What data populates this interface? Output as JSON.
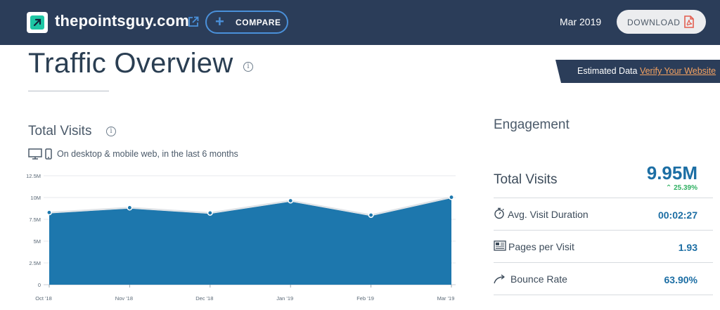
{
  "header": {
    "site_name": "thepointsguy.com",
    "compare_label": "COMPARE",
    "date": "Mar 2019",
    "download_label": "DOWNLOAD",
    "colors": {
      "bar": "#2b3d59",
      "accent": "#4a90d9",
      "logo": "#1ec6a4",
      "pdf": "#e35d4f"
    }
  },
  "page": {
    "title": "Traffic Overview",
    "info_glyph": "i"
  },
  "banner": {
    "text": "Estimated Data",
    "link": "Verify Your Website"
  },
  "total_visits_section": {
    "title": "Total Visits",
    "info_glyph": "i",
    "device_note": "On desktop & mobile web, in the last 6 months"
  },
  "chart_data": {
    "type": "area",
    "categories": [
      "Oct '18",
      "Nov '18",
      "Dec '18",
      "Jan '19",
      "Feb '19",
      "Mar '19"
    ],
    "values": [
      8.2,
      8.75,
      8.15,
      9.55,
      7.9,
      9.95
    ],
    "y_ticks": [
      "0",
      "2.5M",
      "5M",
      "7.5M",
      "10M",
      "12.5M"
    ],
    "ylim": [
      0,
      12.5
    ],
    "unit": "M",
    "grid": true,
    "color": "#1d77ad"
  },
  "engagement": {
    "title": "Engagement",
    "total_visits": {
      "label": "Total Visits",
      "value": "9.95M",
      "change": "25.39%"
    },
    "metrics": [
      {
        "label": "Avg. Visit Duration",
        "value": "00:02:27",
        "icon": "stopwatch-icon"
      },
      {
        "label": "Pages per Visit",
        "value": "1.93",
        "icon": "pages-icon"
      },
      {
        "label": "Bounce Rate",
        "value": "63.90%",
        "icon": "bounce-arrow-icon"
      }
    ]
  }
}
